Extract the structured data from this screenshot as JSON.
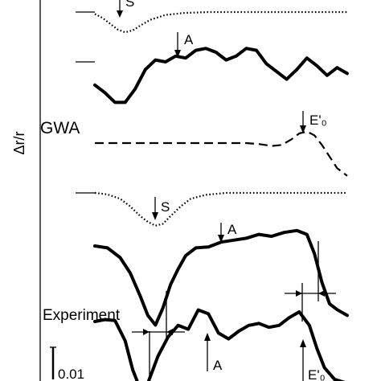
{
  "chart_data": {
    "type": "line",
    "ylabel": "Δr/r",
    "scale_bar_label": "0.01",
    "section_labels": [
      "GWA",
      "Experiment"
    ],
    "annotations": [
      {
        "label": "S",
        "curve": 0,
        "x": 0.13
      },
      {
        "label": "A",
        "curve": 1,
        "x": 0.28
      },
      {
        "label": "E'₀",
        "curve": 2,
        "x": 0.81
      },
      {
        "label": "S",
        "curve": 3,
        "x": 0.23
      },
      {
        "label": "A",
        "curve": 4,
        "x": 0.51
      },
      {
        "label": "A",
        "curve": 5,
        "x": 0.43
      },
      {
        "label": "E'₀",
        "curve": 5,
        "x": 0.81
      }
    ],
    "series": [
      {
        "style": "dotted",
        "x": [
          0,
          0.03,
          0.06,
          0.09,
          0.12,
          0.15,
          0.18,
          0.22,
          0.28,
          0.35,
          0.45,
          0.6,
          0.75,
          0.9,
          1.0
        ],
        "y": [
          -0.001,
          -0.003,
          -0.006,
          -0.009,
          -0.0105,
          -0.0095,
          -0.007,
          -0.004,
          -0.0015,
          -0.0005,
          0,
          0,
          0,
          0,
          0
        ]
      },
      {
        "style": "solid",
        "x": [
          0,
          0.04,
          0.08,
          0.12,
          0.16,
          0.2,
          0.24,
          0.28,
          0.32,
          0.36,
          0.4,
          0.44,
          0.48,
          0.52,
          0.56,
          0.6,
          0.64,
          0.68,
          0.72,
          0.76,
          0.8,
          0.84,
          0.88,
          0.92,
          0.96,
          1.0
        ],
        "y": [
          -0.012,
          -0.016,
          -0.021,
          -0.021,
          -0.014,
          -0.004,
          0.001,
          0,
          0.003,
          0.002,
          0.006,
          0.007,
          0.005,
          0.001,
          0.003,
          0.007,
          0.006,
          -0.001,
          -0.005,
          -0.009,
          -0.004,
          0.002,
          -0.002,
          -0.007,
          -0.003,
          -0.006
        ]
      },
      {
        "style": "dashed",
        "x": [
          0,
          0.1,
          0.2,
          0.3,
          0.4,
          0.5,
          0.6,
          0.65,
          0.7,
          0.74,
          0.78,
          0.81,
          0.84,
          0.87,
          0.9,
          0.93,
          0.96,
          1.0
        ],
        "y": [
          0,
          0,
          0,
          0,
          0,
          0,
          0,
          -0.0005,
          -0.0015,
          -0.001,
          0.002,
          0.005,
          0.006,
          0.004,
          -0.001,
          -0.007,
          -0.013,
          -0.017
        ]
      },
      {
        "style": "dotted",
        "x": [
          0,
          0.05,
          0.1,
          0.14,
          0.18,
          0.21,
          0.24,
          0.27,
          0.3,
          0.34,
          0.38,
          0.44,
          0.52,
          0.6,
          0.7,
          0.8,
          0.9,
          1.0
        ],
        "y": [
          0,
          -0.0008,
          -0.003,
          -0.007,
          -0.012,
          -0.015,
          -0.017,
          -0.016,
          -0.012,
          -0.007,
          -0.003,
          -0.001,
          0,
          0,
          0,
          0,
          0,
          0
        ]
      },
      {
        "style": "solid",
        "x": [
          0,
          0.05,
          0.1,
          0.14,
          0.18,
          0.21,
          0.24,
          0.27,
          0.3,
          0.33,
          0.36,
          0.4,
          0.45,
          0.5,
          0.55,
          0.6,
          0.65,
          0.7,
          0.75,
          0.8,
          0.84,
          0.87,
          0.9,
          0.93,
          0.96,
          1.0
        ],
        "y": [
          0,
          -0.001,
          -0.006,
          -0.014,
          -0.026,
          -0.036,
          -0.041,
          -0.032,
          -0.02,
          -0.012,
          -0.005,
          -0.001,
          -0.0005,
          0.002,
          0.003,
          0.004,
          0.006,
          0.005,
          0.007,
          0.008,
          0.006,
          -0.004,
          -0.019,
          -0.03,
          -0.033,
          -0.036
        ]
      },
      {
        "style": "solid",
        "x": [
          0,
          0.04,
          0.08,
          0.12,
          0.15,
          0.18,
          0.21,
          0.25,
          0.29,
          0.33,
          0.37,
          0.41,
          0.45,
          0.49,
          0.53,
          0.57,
          0.61,
          0.65,
          0.69,
          0.73,
          0.77,
          0.81,
          0.85,
          0.88,
          0.91,
          0.95,
          1.0
        ],
        "y": [
          0,
          0.001,
          0.0005,
          -0.01,
          -0.025,
          -0.035,
          -0.032,
          -0.018,
          -0.008,
          -0.002,
          -0.004,
          0.006,
          0.004,
          -0.006,
          -0.009,
          -0.005,
          -0.002,
          -0.001,
          -0.003,
          -0.002,
          0.002,
          0.005,
          -0.002,
          -0.014,
          -0.024,
          -0.03,
          -0.032
        ]
      }
    ]
  }
}
